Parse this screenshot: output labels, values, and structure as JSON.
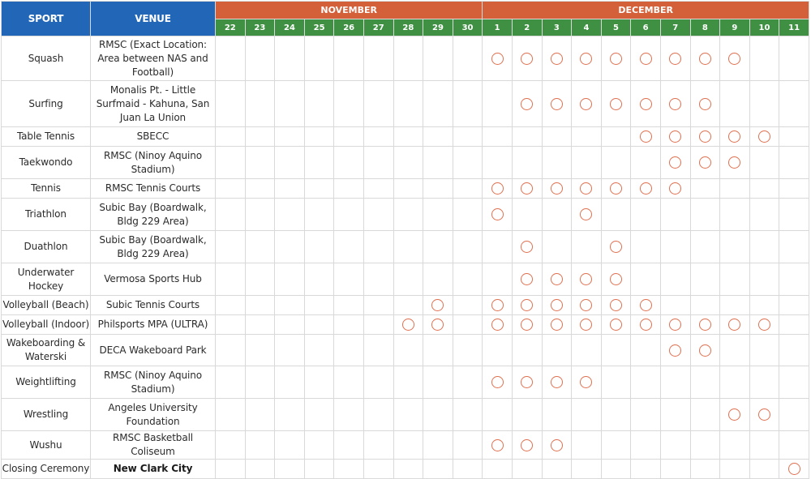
{
  "header": {
    "sport_label": "SPORT",
    "venue_label": "VENUE",
    "months": [
      {
        "label": "NOVEMBER",
        "days": [
          "22",
          "23",
          "24",
          "25",
          "26",
          "27",
          "28",
          "29",
          "30"
        ]
      },
      {
        "label": "DECEMBER",
        "days": [
          "1",
          "2",
          "3",
          "4",
          "5",
          "6",
          "7",
          "8",
          "9",
          "10",
          "11"
        ]
      }
    ]
  },
  "marker": {
    "icon": "circle-icon",
    "color": "#e07050"
  },
  "colors": {
    "sport_header": "#2266b8",
    "month_header": "#d4603a",
    "day_header": "#3f9042"
  },
  "rows": [
    {
      "sport": "Squash",
      "venue": "RMSC (Exact Location: Area between NAS and Football)",
      "events": [
        9,
        10,
        11,
        12,
        13,
        14,
        15,
        16,
        17
      ]
    },
    {
      "sport": "Surfing",
      "venue": "Monalis Pt. - Little Surfmaid - Kahuna, San Juan La Union",
      "events": [
        10,
        11,
        12,
        13,
        14,
        15,
        16
      ]
    },
    {
      "sport": "Table Tennis",
      "venue": "SBECC",
      "events": [
        14,
        15,
        16,
        17,
        18
      ]
    },
    {
      "sport": "Taekwondo",
      "venue": "RMSC (Ninoy Aquino Stadium)",
      "events": [
        15,
        16,
        17
      ]
    },
    {
      "sport": "Tennis",
      "venue": "RMSC Tennis Courts",
      "events": [
        9,
        10,
        11,
        12,
        13,
        14,
        15
      ]
    },
    {
      "sport": "Triathlon",
      "venue": "Subic Bay (Boardwalk, Bldg 229 Area)",
      "events": [
        9,
        12
      ]
    },
    {
      "sport": "Duathlon",
      "venue": "Subic Bay (Boardwalk, Bldg 229 Area)",
      "events": [
        10,
        13
      ]
    },
    {
      "sport": "Underwater Hockey",
      "venue": "Vermosa Sports Hub",
      "events": [
        10,
        11,
        12,
        13
      ]
    },
    {
      "sport": "Volleyball (Beach)",
      "venue": "Subic Tennis Courts",
      "events": [
        7,
        9,
        10,
        11,
        12,
        13,
        14
      ]
    },
    {
      "sport": "Volleyball (Indoor)",
      "venue": "Philsports MPA (ULTRA)",
      "events": [
        6,
        7,
        9,
        10,
        11,
        12,
        13,
        14,
        15,
        16,
        17,
        18
      ]
    },
    {
      "sport": "Wakeboarding & Waterski",
      "venue": "DECA Wakeboard Park",
      "events": [
        15,
        16
      ]
    },
    {
      "sport": "Weightlifting",
      "venue": "RMSC (Ninoy Aquino Stadium)",
      "events": [
        9,
        10,
        11,
        12
      ]
    },
    {
      "sport": "Wrestling",
      "venue": "Angeles University Foundation",
      "events": [
        17,
        18
      ]
    },
    {
      "sport": "Wushu",
      "venue": "RMSC Basketball Coliseum",
      "events": [
        9,
        10,
        11
      ]
    },
    {
      "sport": "Closing Ceremony",
      "venue": "New Clark City",
      "venue_bold": true,
      "events": [
        19
      ]
    }
  ]
}
